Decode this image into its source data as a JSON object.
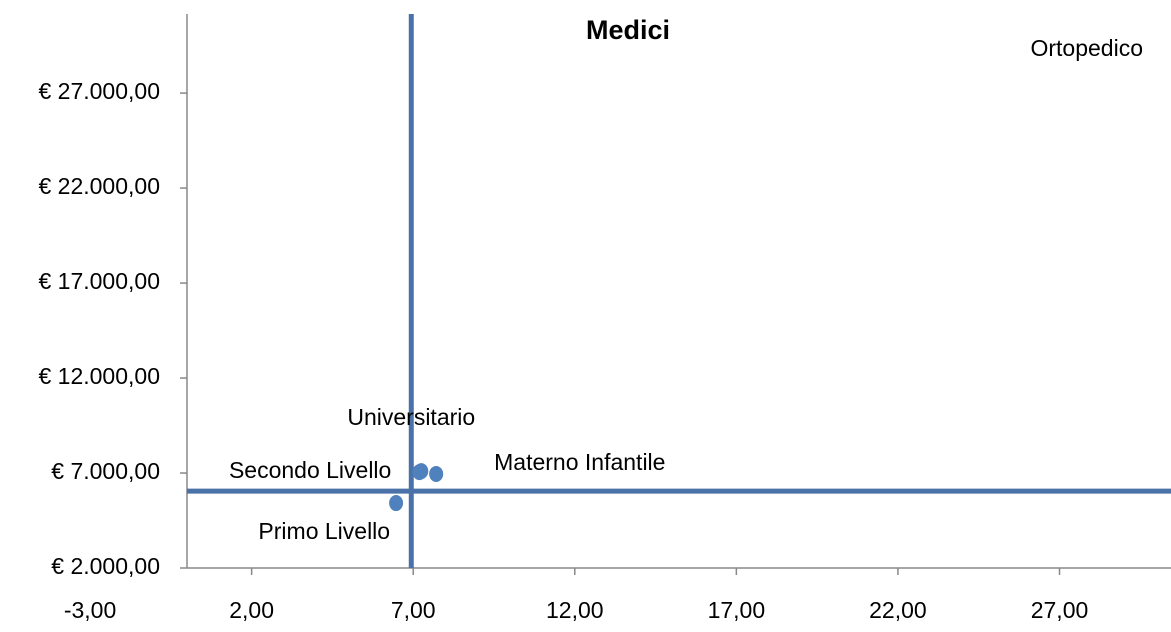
{
  "chart_data": {
    "type": "scatter",
    "title": "Medici",
    "xlim": [
      0,
      30.45
    ],
    "ylim": [
      2000,
      31900
    ],
    "xticks": [
      {
        "value": -3,
        "label": "-3,00"
      },
      {
        "value": 2,
        "label": "2,00"
      },
      {
        "value": 7,
        "label": "7,00"
      },
      {
        "value": 12,
        "label": "12,00"
      },
      {
        "value": 17,
        "label": "17,00"
      },
      {
        "value": 22,
        "label": "22,00"
      },
      {
        "value": 27,
        "label": "27,00"
      }
    ],
    "yticks": [
      {
        "value": 2000,
        "label": "€ 2.000,00"
      },
      {
        "value": 7000,
        "label": "€ 7.000,00"
      },
      {
        "value": 12000,
        "label": "€ 12.000,00"
      },
      {
        "value": 17000,
        "label": "€ 17.000,00"
      },
      {
        "value": 22000,
        "label": "€ 22.000,00"
      },
      {
        "value": 27000,
        "label": "€ 27.000,00"
      }
    ],
    "color": "#4f81bd",
    "points": [
      {
        "label": "Universitario",
        "x": 7.25,
        "y": 7100
      },
      {
        "label": "Secondo Livello",
        "x": 7.19,
        "y": 7050
      },
      {
        "label": "Materno Infantile",
        "x": 7.71,
        "y": 6950
      },
      {
        "label": "Primo Livello",
        "x": 6.47,
        "y": 5420
      },
      {
        "label": "Ortopedico",
        "x": 30.9,
        "y": 30400
      }
    ],
    "reference_lines": {
      "x": 6.94,
      "y": 6050,
      "color": "#4a71a8"
    }
  }
}
